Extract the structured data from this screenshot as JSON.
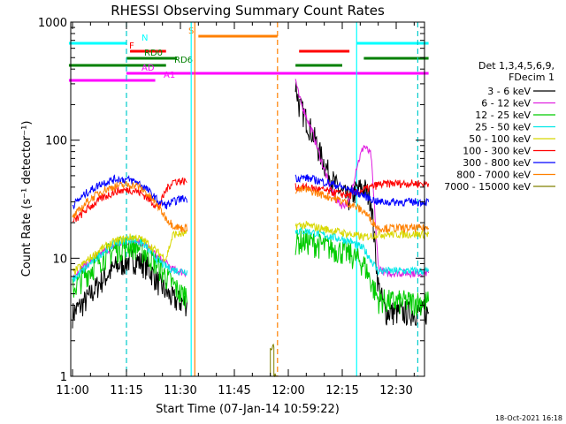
{
  "chart_data": {
    "type": "line",
    "title": "RHESSI Observing Summary Count Rates",
    "xlabel": "Start Time (07-Jan-14 10:59:22)",
    "ylabel": "Count Rate (s⁻¹ detector⁻¹)",
    "y_scale": "log",
    "ylim": [
      1,
      1000
    ],
    "xlim_minutes": [
      0,
      100
    ],
    "x_ticks": [
      "11:00",
      "11:15",
      "11:30",
      "11:45",
      "12:00",
      "12:15",
      "12:30"
    ],
    "y_ticks": [
      "1",
      "10",
      "100",
      "1000"
    ],
    "grid": false,
    "legend_position": "right",
    "legend_header": [
      "Det 1,3,4,5,6,9,",
      "FDecim 1"
    ],
    "footer_date": "18-Oct-2021 16:18",
    "x_unit": "minutes after 10:59:22",
    "series": [
      {
        "name": "3 - 6 keV",
        "color": "#000000",
        "x": [
          1,
          5,
          9,
          13,
          17,
          19,
          21,
          23,
          25,
          27,
          29,
          31,
          33,
          63,
          64,
          66,
          68,
          70,
          72,
          74,
          76,
          78,
          80,
          82,
          84,
          86,
          88,
          90,
          92,
          94,
          96,
          98,
          100
        ],
        "y": [
          3.4,
          4.5,
          6.5,
          8.5,
          9.8,
          9.6,
          8.9,
          7.6,
          6.2,
          5.2,
          4.5,
          4.3,
          4.2,
          300,
          200,
          150,
          110,
          75,
          55,
          42,
          35,
          32,
          38,
          40,
          32,
          6,
          3.5,
          3.5,
          3.5,
          3.5,
          3.5,
          3.5,
          3.5
        ]
      },
      {
        "name": "6 - 12 keV",
        "color": "#e020e0",
        "x": [
          1,
          5,
          9,
          13,
          17,
          19,
          21,
          23,
          25,
          27,
          29,
          31,
          33,
          63,
          64,
          66,
          68,
          70,
          72,
          74,
          76,
          78,
          80,
          82,
          84,
          86,
          88,
          90,
          92,
          94,
          96,
          98,
          100
        ],
        "y": [
          7,
          9,
          11,
          13,
          14,
          14,
          13,
          11.5,
          10,
          9,
          8,
          7.7,
          7.5,
          330,
          230,
          160,
          110,
          70,
          45,
          32,
          28,
          30,
          60,
          90,
          75,
          8.5,
          7.5,
          7.5,
          7.5,
          7.5,
          7.5,
          7.5,
          7.5
        ]
      },
      {
        "name": "12 - 25 keV",
        "color": "#00cc00",
        "x": [
          1,
          5,
          9,
          13,
          17,
          19,
          21,
          23,
          25,
          27,
          29,
          31,
          33,
          63,
          66,
          70,
          74,
          78,
          82,
          86,
          90,
          94,
          98,
          100
        ],
        "y": [
          5.5,
          7.5,
          10,
          12,
          13,
          12.5,
          11.5,
          10,
          8.5,
          7,
          6,
          5,
          5,
          14,
          14,
          13,
          12,
          11,
          9,
          4.5,
          4.3,
          4.3,
          4.3,
          4.3
        ]
      },
      {
        "name": "25 - 50 keV",
        "color": "#00e8e8",
        "x": [
          1,
          5,
          9,
          13,
          17,
          19,
          21,
          23,
          25,
          27,
          29,
          31,
          33,
          63,
          66,
          70,
          74,
          78,
          82,
          86,
          90,
          94,
          98,
          100
        ],
        "y": [
          6.5,
          8.5,
          11,
          13.5,
          14.5,
          14,
          13,
          11,
          9.5,
          8.5,
          8,
          7.8,
          7.8,
          17,
          17,
          16,
          15,
          14,
          12,
          7.8,
          7.8,
          7.8,
          7.8,
          7.8
        ]
      },
      {
        "name": "50 - 100 keV",
        "color": "#d8d800",
        "x": [
          1,
          5,
          9,
          13,
          17,
          19,
          21,
          23,
          25,
          27,
          29,
          31,
          33,
          63,
          66,
          70,
          74,
          78,
          82,
          86,
          90,
          94,
          98,
          100
        ],
        "y": [
          7.5,
          9.5,
          12,
          14,
          15,
          15,
          14,
          12.5,
          11,
          10,
          16,
          16,
          16,
          19,
          19,
          18,
          17,
          16,
          15,
          16,
          16,
          16,
          16,
          16
        ]
      },
      {
        "name": "100 - 300 keV",
        "color": "#ff0000",
        "x": [
          1,
          5,
          9,
          13,
          17,
          19,
          21,
          23,
          25,
          27,
          29,
          31,
          33,
          63,
          66,
          70,
          74,
          78,
          82,
          86,
          90,
          94,
          98,
          100
        ],
        "y": [
          20,
          26,
          32,
          37,
          38,
          37,
          34,
          30,
          27,
          38,
          45,
          45,
          45,
          40,
          40,
          38,
          36,
          34,
          38,
          42,
          43,
          43,
          43,
          43
        ]
      },
      {
        "name": "300 - 800 keV",
        "color": "#0000ff",
        "x": [
          1,
          5,
          9,
          13,
          17,
          19,
          21,
          23,
          25,
          27,
          29,
          31,
          33,
          63,
          66,
          70,
          74,
          78,
          82,
          86,
          90,
          94,
          98,
          100
        ],
        "y": [
          28,
          36,
          43,
          47,
          46,
          44,
          40,
          35,
          30,
          28,
          30,
          32,
          32,
          48,
          48,
          45,
          42,
          38,
          34,
          30,
          30,
          30,
          30,
          30
        ]
      },
      {
        "name": "800 - 7000 keV",
        "color": "#ff8000",
        "x": [
          1,
          5,
          9,
          13,
          17,
          19,
          21,
          23,
          25,
          27,
          29,
          31,
          33,
          63,
          66,
          70,
          74,
          78,
          82,
          86,
          90,
          94,
          98,
          100
        ],
        "y": [
          22,
          30,
          37,
          41,
          42,
          41,
          37,
          32,
          27,
          22,
          19,
          18,
          18,
          38,
          38,
          35,
          32,
          29,
          25,
          18,
          18,
          18,
          18,
          18
        ]
      },
      {
        "name": "7000 - 15000 keV",
        "color": "#808000",
        "x": [
          56,
          56,
          57,
          57,
          58
        ],
        "y": [
          1,
          1.8,
          1.8,
          1,
          1
        ]
      }
    ],
    "flag_bars": [
      {
        "label": "N",
        "color": "#00ffff",
        "segments": [
          [
            0,
            16
          ],
          [
            80,
            100
          ]
        ]
      },
      {
        "label": "F",
        "color": "#ff0000",
        "segments": [
          [
            17,
            27
          ],
          [
            64,
            78
          ]
        ]
      },
      {
        "label": "RD0",
        "color": "#008000",
        "segments": [
          [
            16,
            30
          ],
          [
            82,
            100
          ]
        ]
      },
      {
        "label": "RD6",
        "color": "#008000",
        "segments": [
          [
            0,
            27
          ],
          [
            63,
            76
          ]
        ]
      },
      {
        "label": "S",
        "color": "#ff8000",
        "segments": [
          [
            36,
            58
          ]
        ]
      },
      {
        "label": "AD",
        "color": "#ff00ff",
        "segments": [
          [
            16,
            100
          ]
        ]
      },
      {
        "label": "A1",
        "color": "#ff00ff",
        "segments": [
          [
            0,
            24
          ]
        ]
      }
    ],
    "vertical_markers": [
      {
        "x": 16,
        "color": "#00cccc",
        "style": "dashed"
      },
      {
        "x": 34,
        "color": "#00ffff",
        "style": "solid"
      },
      {
        "x": 35,
        "color": "#ff8000",
        "style": "solid"
      },
      {
        "x": 58,
        "color": "#ff8000",
        "style": "dashed"
      },
      {
        "x": 80,
        "color": "#00ffff",
        "style": "solid"
      },
      {
        "x": 97,
        "color": "#00cccc",
        "style": "dashed"
      }
    ]
  }
}
